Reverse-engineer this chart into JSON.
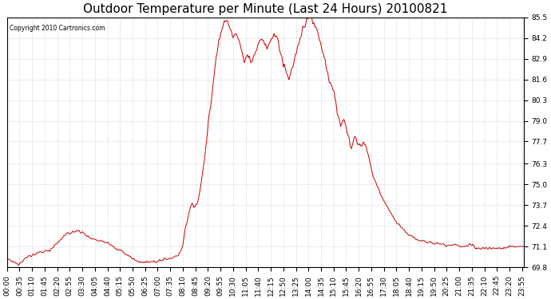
{
  "title": "Outdoor Temperature per Minute (Last 24 Hours) 20100821",
  "copyright_text": "Copyright 2010 Cartronics.com",
  "line_color": "#cc0000",
  "bg_color": "#ffffff",
  "plot_bg_color": "#ffffff",
  "grid_color": "#aaaaaa",
  "title_fontsize": 11,
  "tick_fontsize": 6.5,
  "ylim": [
    69.8,
    85.5
  ],
  "yticks": [
    69.8,
    71.1,
    72.4,
    73.7,
    75.0,
    76.3,
    77.7,
    79.0,
    80.3,
    81.6,
    82.9,
    84.2,
    85.5
  ],
  "total_minutes": 1440,
  "xtick_interval": 35,
  "x_tick_labels": [
    "00:00",
    "00:35",
    "01:10",
    "01:45",
    "02:20",
    "02:55",
    "03:30",
    "04:05",
    "04:40",
    "05:15",
    "05:50",
    "06:25",
    "07:00",
    "07:35",
    "08:10",
    "08:45",
    "09:20",
    "09:55",
    "10:30",
    "11:05",
    "11:40",
    "12:15",
    "12:50",
    "13:25",
    "14:00",
    "14:35",
    "15:10",
    "15:45",
    "16:20",
    "16:55",
    "17:30",
    "18:05",
    "18:40",
    "19:15",
    "19:50",
    "20:25",
    "21:00",
    "21:35",
    "22:10",
    "22:45",
    "23:20",
    "23:55"
  ],
  "keypoints": [
    [
      0,
      70.3
    ],
    [
      30,
      70.0
    ],
    [
      60,
      70.5
    ],
    [
      90,
      70.7
    ],
    [
      120,
      70.9
    ],
    [
      140,
      71.3
    ],
    [
      160,
      71.8
    ],
    [
      180,
      72.0
    ],
    [
      200,
      72.1
    ],
    [
      210,
      72.0
    ],
    [
      220,
      71.8
    ],
    [
      230,
      71.7
    ],
    [
      240,
      71.6
    ],
    [
      250,
      71.5
    ],
    [
      260,
      71.5
    ],
    [
      270,
      71.4
    ],
    [
      280,
      71.4
    ],
    [
      290,
      71.2
    ],
    [
      300,
      71.0
    ],
    [
      320,
      70.8
    ],
    [
      340,
      70.5
    ],
    [
      360,
      70.2
    ],
    [
      380,
      70.1
    ],
    [
      400,
      70.1
    ],
    [
      420,
      70.2
    ],
    [
      440,
      70.3
    ],
    [
      460,
      70.4
    ],
    [
      470,
      70.5
    ],
    [
      480,
      70.6
    ],
    [
      490,
      71.2
    ],
    [
      500,
      72.5
    ],
    [
      510,
      73.5
    ],
    [
      515,
      73.8
    ],
    [
      520,
      73.7
    ],
    [
      525,
      73.6
    ],
    [
      530,
      73.8
    ],
    [
      535,
      74.2
    ],
    [
      540,
      75.0
    ],
    [
      550,
      76.5
    ],
    [
      560,
      78.5
    ],
    [
      570,
      80.5
    ],
    [
      580,
      82.5
    ],
    [
      590,
      84.0
    ],
    [
      600,
      84.8
    ],
    [
      605,
      85.2
    ],
    [
      610,
      85.4
    ],
    [
      615,
      85.3
    ],
    [
      620,
      84.9
    ],
    [
      625,
      84.5
    ],
    [
      630,
      84.2
    ],
    [
      635,
      84.3
    ],
    [
      640,
      84.5
    ],
    [
      645,
      84.3
    ],
    [
      650,
      83.8
    ],
    [
      655,
      83.2
    ],
    [
      660,
      82.8
    ],
    [
      665,
      82.9
    ],
    [
      670,
      83.1
    ],
    [
      675,
      83.0
    ],
    [
      680,
      82.7
    ],
    [
      685,
      82.9
    ],
    [
      690,
      83.2
    ],
    [
      695,
      83.5
    ],
    [
      700,
      83.8
    ],
    [
      705,
      84.0
    ],
    [
      710,
      84.1
    ],
    [
      715,
      84.0
    ],
    [
      720,
      83.8
    ],
    [
      725,
      83.5
    ],
    [
      730,
      83.8
    ],
    [
      735,
      84.1
    ],
    [
      740,
      84.3
    ],
    [
      745,
      84.4
    ],
    [
      750,
      84.3
    ],
    [
      755,
      84.0
    ],
    [
      760,
      83.5
    ],
    [
      765,
      83.0
    ],
    [
      770,
      82.5
    ],
    [
      775,
      82.2
    ],
    [
      780,
      81.8
    ],
    [
      785,
      81.6
    ],
    [
      790,
      82.0
    ],
    [
      795,
      82.4
    ],
    [
      800,
      82.8
    ],
    [
      805,
      83.2
    ],
    [
      810,
      83.6
    ],
    [
      815,
      84.0
    ],
    [
      820,
      84.3
    ],
    [
      825,
      84.8
    ],
    [
      830,
      85.0
    ],
    [
      835,
      85.3
    ],
    [
      840,
      85.4
    ],
    [
      845,
      85.5
    ],
    [
      850,
      85.4
    ],
    [
      855,
      85.2
    ],
    [
      860,
      85.0
    ],
    [
      865,
      84.6
    ],
    [
      870,
      84.2
    ],
    [
      875,
      83.8
    ],
    [
      880,
      83.4
    ],
    [
      885,
      82.8
    ],
    [
      890,
      82.2
    ],
    [
      895,
      81.8
    ],
    [
      900,
      81.5
    ],
    [
      905,
      81.2
    ],
    [
      910,
      80.8
    ],
    [
      915,
      80.2
    ],
    [
      920,
      79.5
    ],
    [
      925,
      79.0
    ],
    [
      930,
      78.8
    ],
    [
      935,
      79.2
    ],
    [
      940,
      79.0
    ],
    [
      945,
      78.5
    ],
    [
      950,
      78.0
    ],
    [
      955,
      77.7
    ],
    [
      960,
      77.4
    ],
    [
      965,
      77.8
    ],
    [
      970,
      78.1
    ],
    [
      975,
      77.8
    ],
    [
      980,
      77.5
    ],
    [
      985,
      77.4
    ],
    [
      990,
      77.5
    ],
    [
      995,
      77.6
    ],
    [
      1000,
      77.4
    ],
    [
      1005,
      77.0
    ],
    [
      1010,
      76.5
    ],
    [
      1015,
      76.0
    ],
    [
      1020,
      75.5
    ],
    [
      1030,
      75.0
    ],
    [
      1040,
      74.5
    ],
    [
      1050,
      74.0
    ],
    [
      1060,
      73.6
    ],
    [
      1070,
      73.2
    ],
    [
      1080,
      72.8
    ],
    [
      1090,
      72.5
    ],
    [
      1100,
      72.3
    ],
    [
      1110,
      72.0
    ],
    [
      1120,
      71.8
    ],
    [
      1130,
      71.7
    ],
    [
      1140,
      71.6
    ],
    [
      1150,
      71.5
    ],
    [
      1160,
      71.5
    ],
    [
      1170,
      71.4
    ],
    [
      1180,
      71.4
    ],
    [
      1190,
      71.3
    ],
    [
      1200,
      71.3
    ],
    [
      1210,
      71.3
    ],
    [
      1220,
      71.2
    ],
    [
      1230,
      71.2
    ],
    [
      1240,
      71.2
    ],
    [
      1250,
      71.2
    ],
    [
      1260,
      71.1
    ],
    [
      1270,
      71.1
    ],
    [
      1280,
      71.1
    ],
    [
      1290,
      71.2
    ],
    [
      1300,
      71.1
    ],
    [
      1310,
      71.0
    ],
    [
      1320,
      71.0
    ],
    [
      1340,
      71.0
    ],
    [
      1360,
      71.0
    ],
    [
      1380,
      71.0
    ],
    [
      1400,
      71.1
    ],
    [
      1420,
      71.1
    ],
    [
      1440,
      71.1
    ]
  ]
}
